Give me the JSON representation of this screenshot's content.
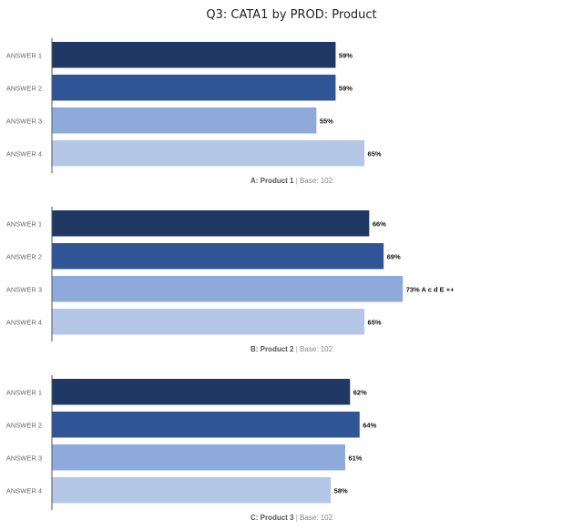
{
  "chart_data": [
    {
      "type": "bar",
      "orientation": "horizontal",
      "title": "Q3: CATA1 by PROD: Product",
      "panel_label": "A: Product 1",
      "base_label": "Base: 102",
      "categories": [
        "ANSWER 1",
        "ANSWER 2",
        "ANSWER 3",
        "ANSWER 4"
      ],
      "values": [
        59,
        59,
        55,
        65
      ],
      "data_labels": [
        "59%",
        "59%",
        "55%",
        "65%"
      ],
      "xlim": [
        0,
        100
      ]
    },
    {
      "type": "bar",
      "orientation": "horizontal",
      "panel_label": "B: Product 2",
      "base_label": "Base: 102",
      "categories": [
        "ANSWER 1",
        "ANSWER 2",
        "ANSWER 3",
        "ANSWER 4"
      ],
      "values": [
        66,
        69,
        73,
        65
      ],
      "data_labels": [
        "66%",
        "69%",
        "73% A c d E ++",
        "65%"
      ],
      "xlim": [
        0,
        100
      ]
    },
    {
      "type": "bar",
      "orientation": "horizontal",
      "panel_label": "C: Product 3",
      "base_label": "Base: 102",
      "categories": [
        "ANSWER 1",
        "ANSWER 2",
        "ANSWER 3",
        "ANSWER 4"
      ],
      "values": [
        62,
        64,
        61,
        58
      ],
      "data_labels": [
        "62%",
        "64%",
        "61%",
        "58%"
      ],
      "xlim": [
        0,
        100
      ]
    }
  ],
  "title": "Q3: CATA1 by PROD: Product",
  "separator": "|",
  "colors": [
    "#1f3864",
    "#2f5597",
    "#8eaadb",
    "#b4c7e7"
  ]
}
